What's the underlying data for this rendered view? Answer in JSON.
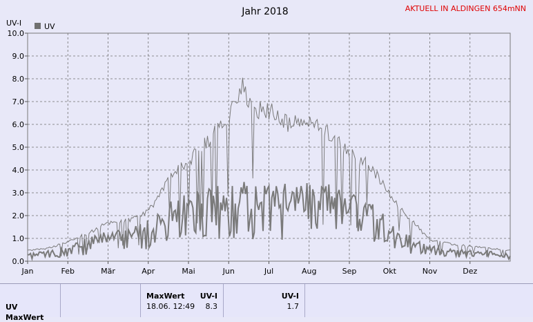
{
  "header": {
    "title": "Jahr 2018",
    "station": "AKTUELL IN ALDINGEN 654mNN"
  },
  "colors": {
    "background": "#e8e8f8",
    "station_text": "#e00000",
    "series": "#7a7a7a",
    "grid": "#6e6e6e"
  },
  "chart_data": {
    "type": "line",
    "title": "Jahr 2018",
    "ylabel": "UV-I",
    "ylim": [
      0,
      10
    ],
    "yticks": [
      "0.0",
      "1.0",
      "2.0",
      "3.0",
      "4.0",
      "5.0",
      "6.0",
      "7.0",
      "8.0",
      "9.0",
      "10.0"
    ],
    "x_ticks": [
      "Jan",
      "Feb",
      "Mär",
      "Apr",
      "Mai",
      "Jun",
      "Jul",
      "Aug",
      "Sep",
      "Okt",
      "Nov",
      "Dez"
    ],
    "legend": [
      "UV"
    ],
    "grid": true,
    "series": [
      {
        "name": "UV",
        "style": "daily-max",
        "x_month": [
          0,
          0.5,
          1,
          1.5,
          2,
          2.5,
          3,
          3.5,
          4,
          4.5,
          5,
          5.33,
          5.5,
          6,
          6.5,
          7,
          7.5,
          8,
          8.5,
          9,
          9.5,
          10,
          10.5,
          11,
          11.5,
          12
        ],
        "values": [
          0.5,
          0.6,
          0.9,
          1.3,
          1.8,
          1.9,
          2.3,
          3.8,
          4.7,
          5.6,
          6.8,
          8.3,
          7.2,
          7.0,
          6.4,
          6.5,
          6.0,
          5.0,
          4.5,
          3.1,
          2.0,
          1.0,
          0.8,
          0.7,
          0.6,
          0.5
        ]
      },
      {
        "name": "UV",
        "style": "daily-mean",
        "x_month": [
          0,
          0.5,
          1,
          1.5,
          2,
          2.5,
          3,
          3.5,
          4,
          4.5,
          5,
          5.5,
          6,
          6.5,
          7,
          7.5,
          8,
          8.5,
          9,
          9.5,
          10,
          10.5,
          11,
          11.5,
          12
        ],
        "values": [
          0.3,
          0.4,
          0.6,
          0.9,
          1.2,
          1.2,
          1.6,
          2.3,
          2.6,
          2.9,
          3.0,
          3.2,
          2.9,
          3.0,
          3.1,
          3.0,
          2.6,
          2.3,
          1.6,
          1.0,
          0.6,
          0.5,
          0.4,
          0.4,
          0.3
        ]
      }
    ]
  },
  "table": {
    "row_label": "UV",
    "row_label2": "MaxWert",
    "max_title": "MaxWert",
    "max_unit": "UV-I",
    "max_date": "18.06.  12:49",
    "max_value": "8.3",
    "cur_unit": "UV-I",
    "cur_value": "1.7"
  }
}
